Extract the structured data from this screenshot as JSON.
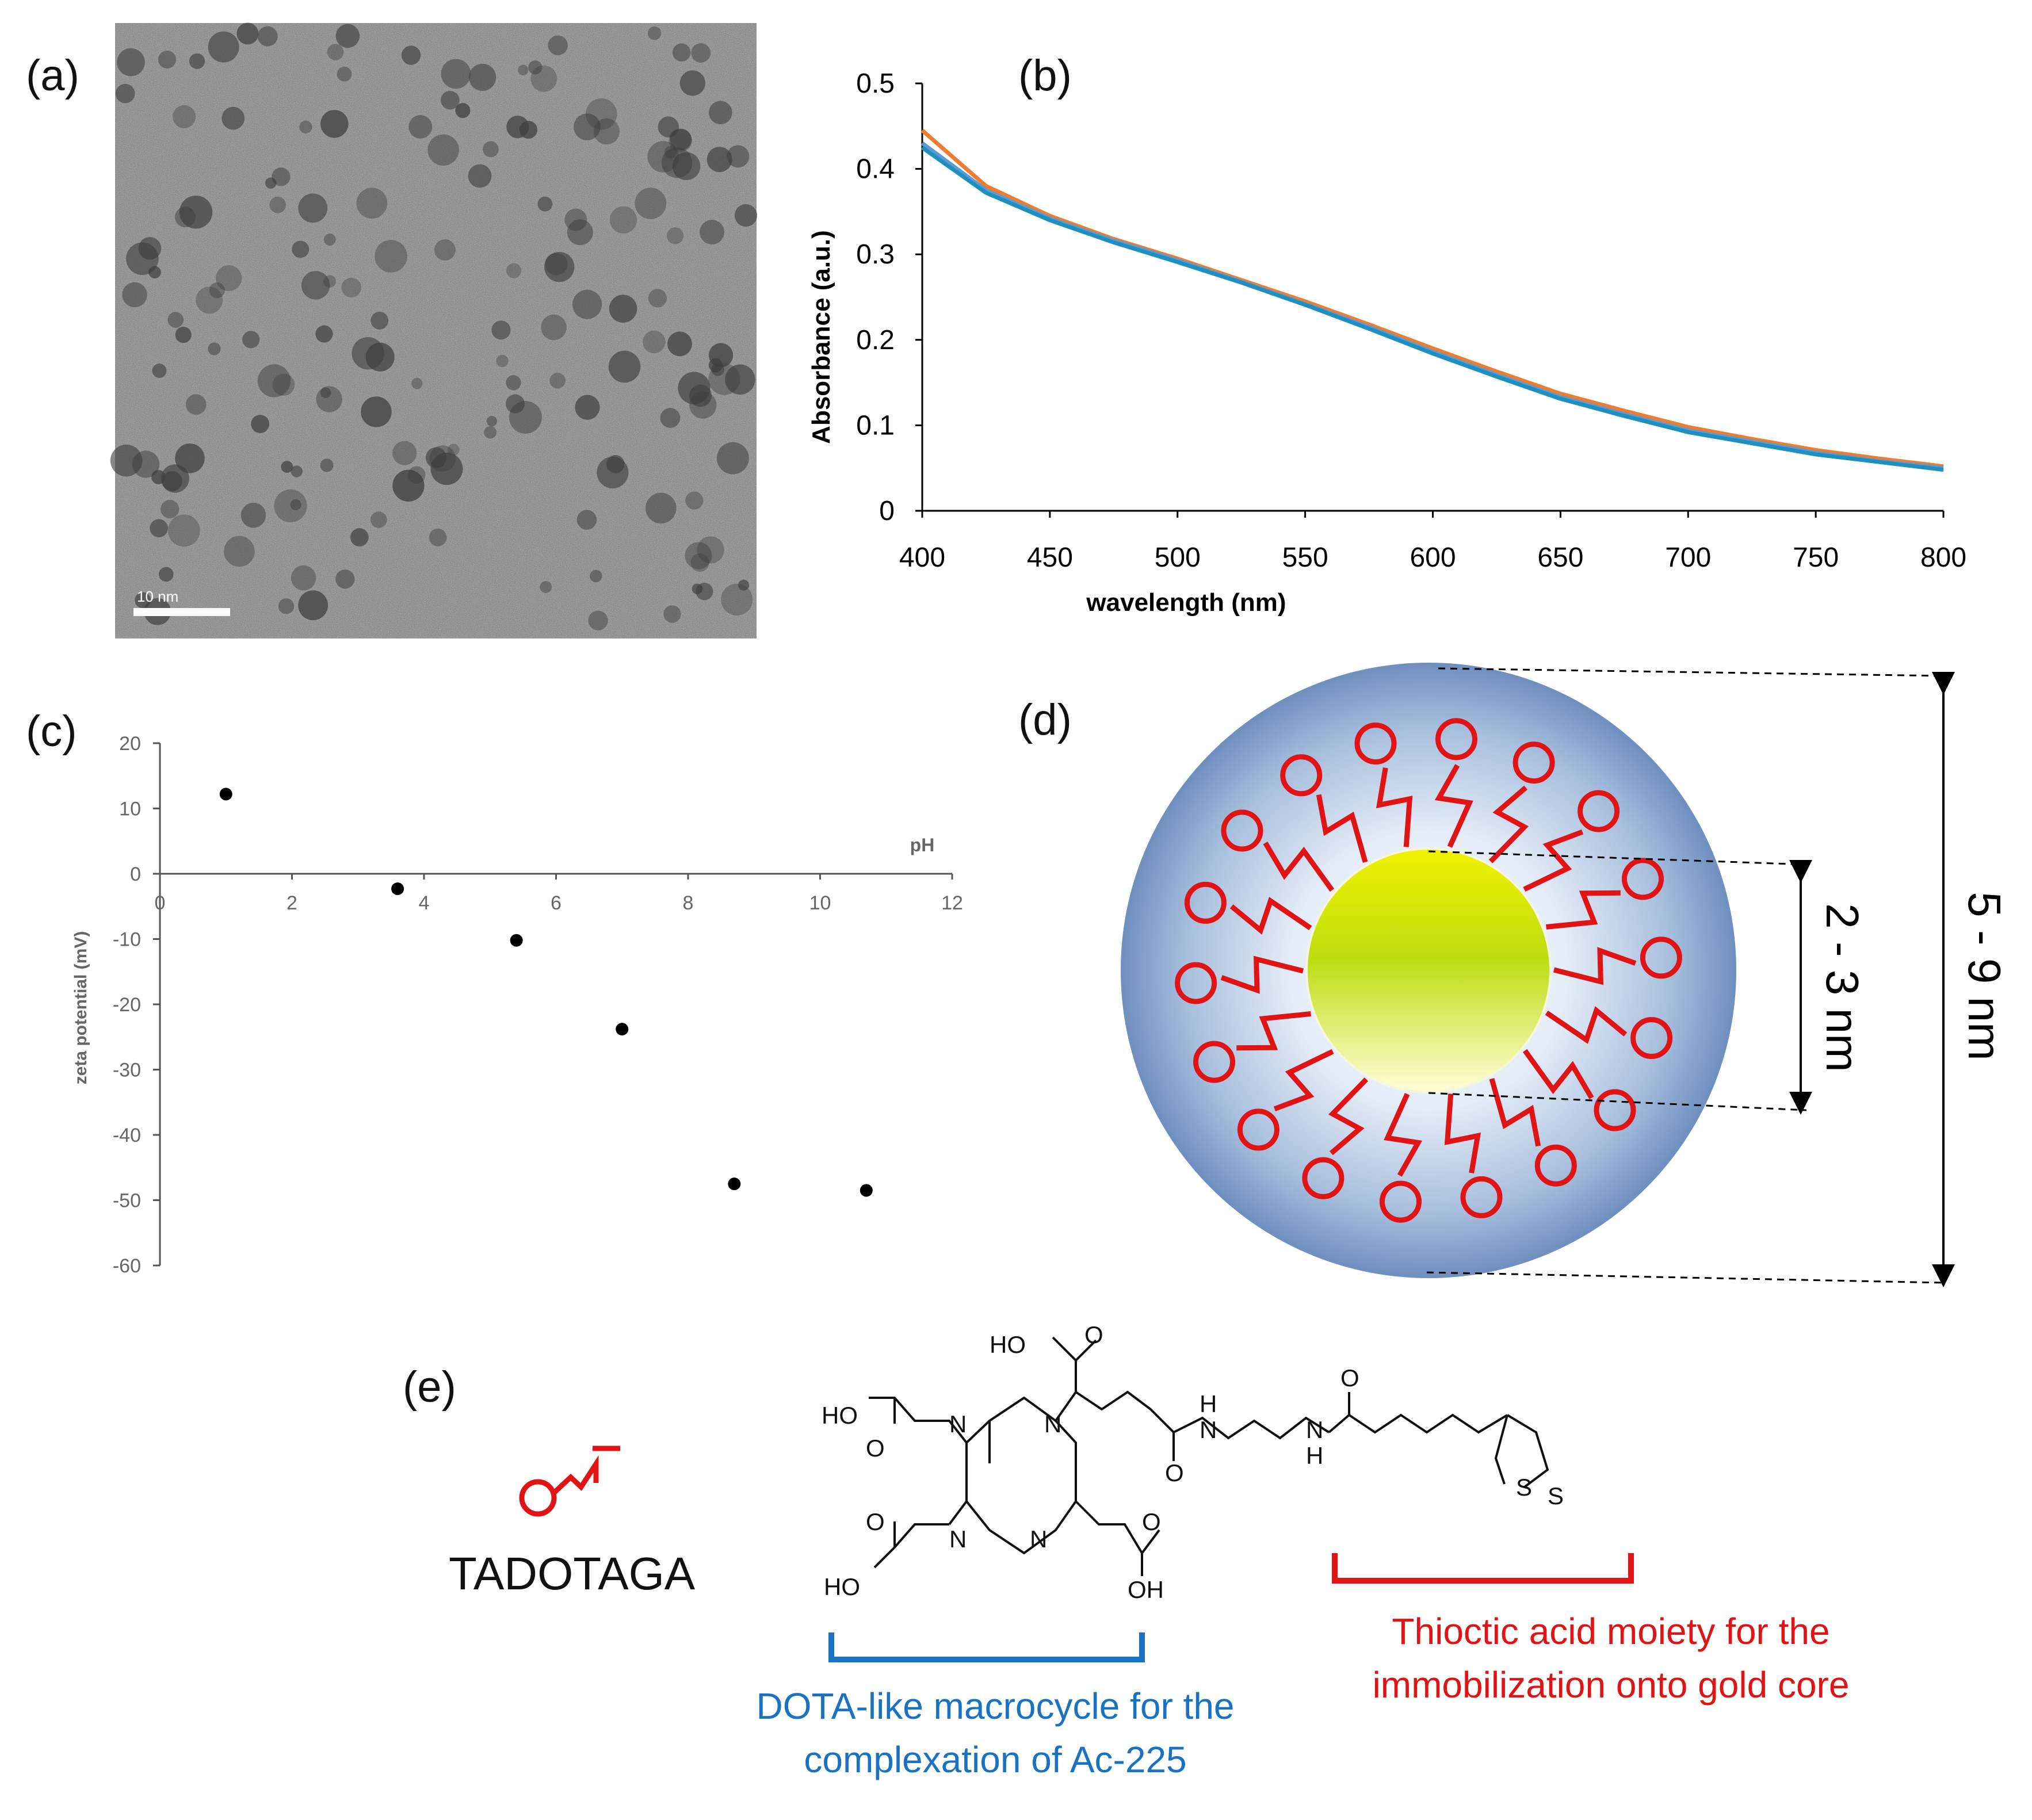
{
  "panels": {
    "a": {
      "label": "(a)",
      "scale_bar_label": "10 nm"
    },
    "b": {
      "label": "(b)",
      "chart_data": {
        "type": "line",
        "xlabel": "wavelength (nm)",
        "ylabel": "Absorbance (a.u.)",
        "xlim": [
          400,
          800
        ],
        "ylim": [
          0,
          0.5
        ],
        "x_ticks": [
          "400",
          "450",
          "500",
          "550",
          "600",
          "650",
          "700",
          "750",
          "800"
        ],
        "y_ticks": [
          "0",
          "0.1",
          "0.2",
          "0.3",
          "0.4",
          "0.5"
        ],
        "x": [
          400,
          425,
          450,
          475,
          500,
          525,
          550,
          575,
          600,
          625,
          650,
          675,
          700,
          725,
          750,
          775,
          800
        ],
        "series": [
          {
            "color": "#ed7d31",
            "values": [
              0.445,
              0.38,
              0.345,
              0.318,
              0.295,
              0.27,
              0.245,
              0.218,
              0.19,
              0.163,
              0.137,
              0.117,
              0.098,
              0.084,
              0.071,
              0.061,
              0.052
            ]
          },
          {
            "color": "#5b9bd5",
            "values": [
              0.43,
              0.375,
              0.342,
              0.316,
              0.293,
              0.268,
              0.242,
              0.215,
              0.186,
              0.159,
              0.133,
              0.113,
              0.094,
              0.081,
              0.068,
              0.058,
              0.05
            ]
          },
          {
            "color": "#1f8fbf",
            "values": [
              0.425,
              0.372,
              0.34,
              0.314,
              0.291,
              0.267,
              0.241,
              0.213,
              0.184,
              0.157,
              0.131,
              0.111,
              0.092,
              0.079,
              0.066,
              0.057,
              0.048
            ]
          }
        ]
      }
    },
    "c": {
      "label": "(c)",
      "chart_data": {
        "type": "scatter",
        "xlabel": "pH",
        "ylabel": "zeta potential (mV)",
        "xlim": [
          0,
          12
        ],
        "ylim": [
          -60,
          20
        ],
        "x_ticks": [
          "0",
          "2",
          "4",
          "6",
          "8",
          "10",
          "12"
        ],
        "y_ticks": [
          "20",
          "10",
          "0",
          "-10",
          "-20",
          "-30",
          "-40",
          "-50",
          "-60"
        ],
        "points": [
          {
            "x": 1.0,
            "y": 12.2
          },
          {
            "x": 3.6,
            "y": -2.3
          },
          {
            "x": 5.4,
            "y": -10.2
          },
          {
            "x": 7.0,
            "y": -23.8
          },
          {
            "x": 8.7,
            "y": -47.5
          },
          {
            "x": 10.7,
            "y": -48.5
          }
        ],
        "grid": false
      }
    },
    "d": {
      "label": "(d)",
      "inner_dimension": "2 - 3 nm",
      "outer_dimension": "5 - 9 nm"
    },
    "e": {
      "label": "(e)",
      "ligand_name": "TADOTAGA",
      "atoms": {
        "ho_top": "HO",
        "o_top": "O",
        "ho_left": "HO",
        "o_left1": "O",
        "o_left2": "O",
        "ho_bottom": "HO",
        "o_right1": "O",
        "oh_right": "OH",
        "n1": "N",
        "n2": "N",
        "n3": "N",
        "n4": "N",
        "o_amide1": "O",
        "nh1_h": "H",
        "nh1_n": "N",
        "nh2_n": "N",
        "nh2_h": "H",
        "o_amide2": "O",
        "s1": "S",
        "s2": "S"
      },
      "blue_caption_line1": "DOTA-like macrocycle for the",
      "blue_caption_line2": "complexation of Ac-225",
      "red_caption_line1": "Thioctic acid moiety for the",
      "red_caption_line2": "immobilization onto gold core",
      "colors": {
        "blue": "#1a72c2",
        "red": "#e01414"
      }
    }
  }
}
